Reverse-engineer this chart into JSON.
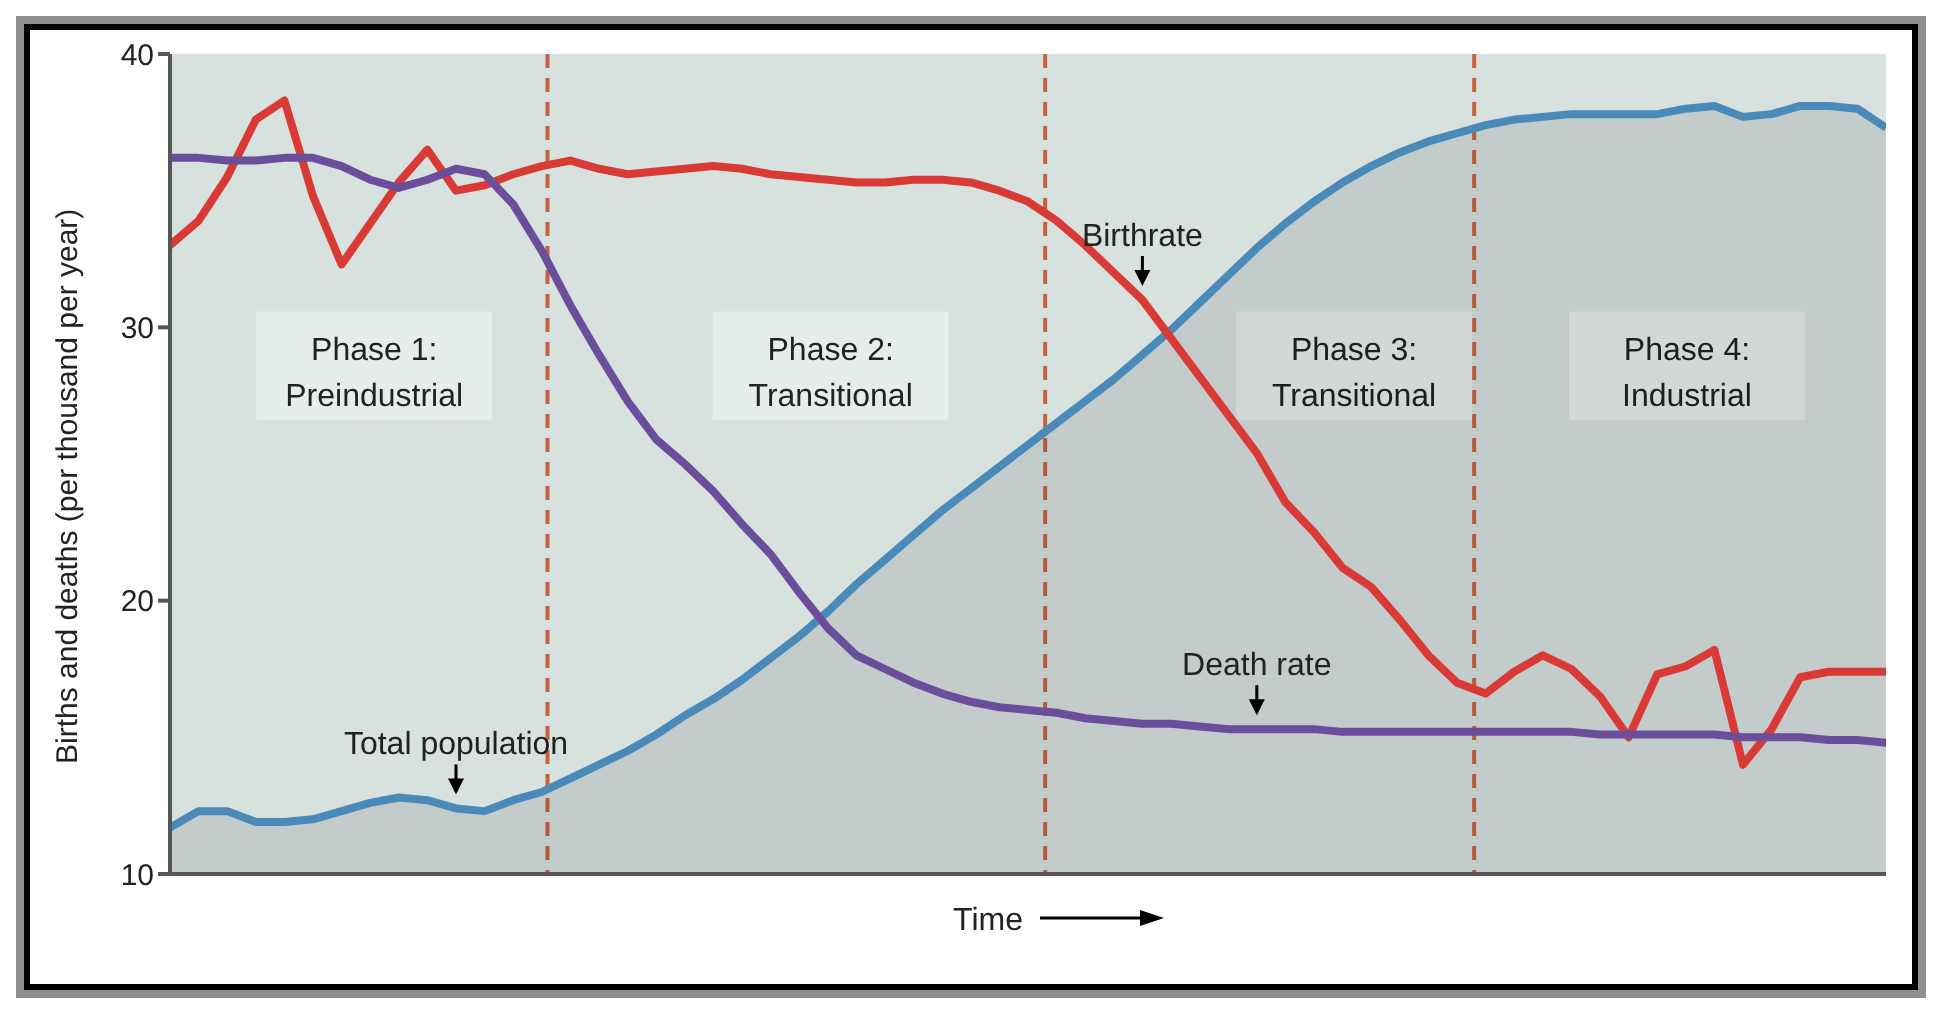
{
  "chart_data": {
    "type": "line",
    "ylabel": "Births and deaths (per thousand per year)",
    "xlabel": "Time",
    "categories": [
      null,
      null,
      null,
      null,
      null,
      null,
      null,
      null,
      null,
      null,
      null,
      null,
      null,
      null,
      null,
      null,
      null,
      null,
      null,
      null,
      null,
      null,
      null,
      null,
      null,
      null,
      null,
      null,
      null,
      null,
      null,
      null,
      null,
      null,
      null,
      null,
      null,
      null,
      null,
      null,
      null,
      null,
      null,
      null,
      null,
      null,
      null,
      null,
      null,
      null,
      null,
      null,
      null,
      null,
      null,
      null,
      null,
      null,
      null,
      null,
      null
    ],
    "ylim": [
      10,
      40
    ],
    "yticks": [
      10,
      20,
      30,
      40
    ],
    "tick_labels": "y",
    "marker": "none",
    "line_style": "solid",
    "series": [
      {
        "name": "Birthrate",
        "color": "#d93a35",
        "values": [
          33,
          33.9,
          35.5,
          37.6,
          38.3,
          34.8,
          32.3,
          33.8,
          35.3,
          36.5,
          35,
          35.2,
          35.6,
          35.9,
          36.1,
          35.8,
          35.6,
          35.7,
          35.8,
          35.9,
          35.8,
          35.6,
          35.5,
          35.4,
          35.3,
          35.3,
          35.4,
          35.4,
          35.3,
          35,
          34.6,
          33.9,
          33,
          32,
          31,
          29.6,
          28.2,
          26.8,
          25.4,
          23.6,
          22.5,
          21.2,
          20.5,
          19.3,
          18,
          17,
          16.6,
          17.4,
          18,
          17.5,
          16.5,
          15,
          17.3,
          17.6,
          18.2,
          14,
          15.3,
          17.2,
          17.4,
          17.4,
          17.4
        ]
      },
      {
        "name": "Death rate",
        "color": "#6b4e9b",
        "values": [
          36.2,
          36.2,
          36.1,
          36.1,
          36.2,
          36.2,
          35.9,
          35.4,
          35.1,
          35.4,
          35.8,
          35.6,
          34.5,
          32.8,
          30.8,
          29,
          27.3,
          25.9,
          25,
          24,
          22.8,
          21.7,
          20.3,
          19,
          18,
          17.5,
          17,
          16.6,
          16.3,
          16.1,
          16,
          15.9,
          15.7,
          15.6,
          15.5,
          15.5,
          15.4,
          15.3,
          15.3,
          15.3,
          15.3,
          15.2,
          15.2,
          15.2,
          15.2,
          15.2,
          15.2,
          15.2,
          15.2,
          15.2,
          15.1,
          15.1,
          15.1,
          15.1,
          15.1,
          15,
          15,
          15,
          14.9,
          14.9,
          14.8
        ]
      },
      {
        "name": "Total population",
        "type": "area",
        "color": "#4a8ab8",
        "values": [
          11.7,
          12.3,
          12.3,
          11.9,
          11.9,
          12,
          12.3,
          12.6,
          12.8,
          12.7,
          12.4,
          12.3,
          12.7,
          13,
          13.5,
          14,
          14.5,
          15.1,
          15.8,
          16.4,
          17.1,
          17.9,
          18.7,
          19.6,
          20.6,
          21.5,
          22.4,
          23.3,
          24.1,
          24.9,
          25.7,
          26.5,
          27.3,
          28.1,
          29,
          29.9,
          30.9,
          31.9,
          32.9,
          33.8,
          34.6,
          35.3,
          35.9,
          36.4,
          36.8,
          37.1,
          37.4,
          37.6,
          37.7,
          37.8,
          37.8,
          37.8,
          37.8,
          38,
          38.1,
          37.7,
          37.8,
          38.1,
          38.1,
          38,
          37.3
        ]
      }
    ],
    "annotations": [
      "Phase 1:\nPreindustrial",
      "Phase 2:\nTransitional",
      "Phase 3:\nTransitional",
      "Phase 4:\nIndustrial"
    ]
  }
}
